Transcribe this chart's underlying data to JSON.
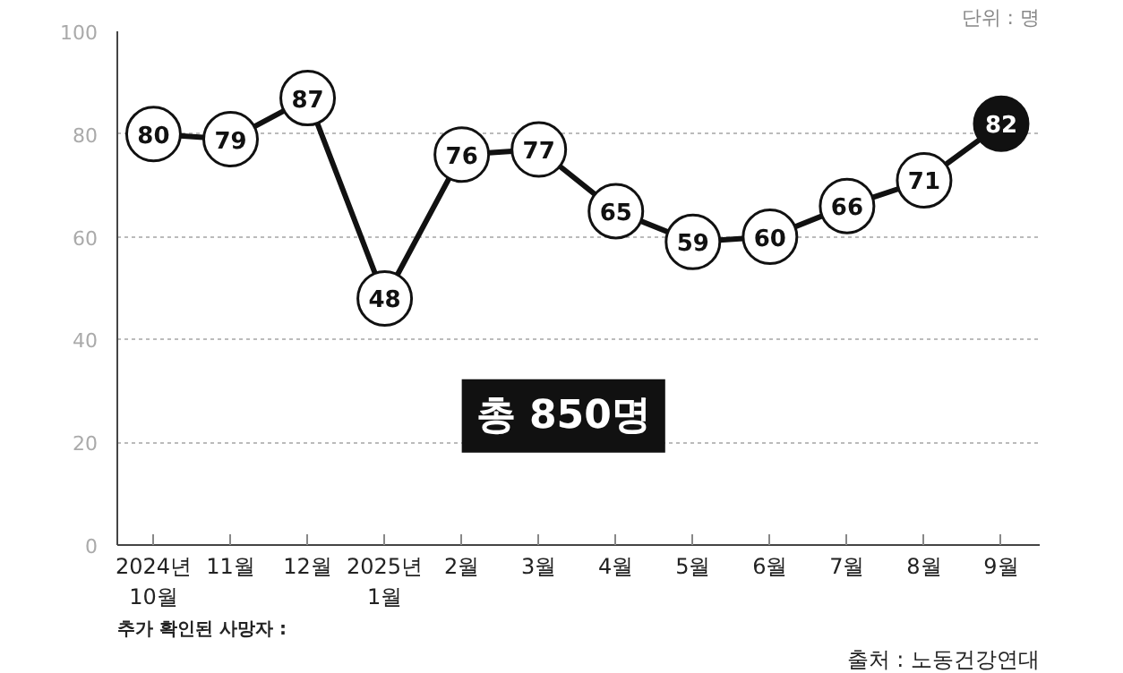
{
  "chart_data": {
    "type": "line",
    "categories": [
      "2024년\n10월",
      "11월",
      "12월",
      "2025년\n1월",
      "2월",
      "3월",
      "4월",
      "5월",
      "6월",
      "7월",
      "8월",
      "9월"
    ],
    "series": [
      {
        "color": "#111111",
        "values": [
          80,
          79,
          87,
          48,
          76,
          77,
          65,
          59,
          60,
          66,
          71,
          82
        ]
      }
    ],
    "colors": [
      "#ffffff",
      "#ffffff",
      "#ffffff",
      "#ffffff",
      "#ffffff",
      "#ffffff",
      "#ffffff",
      "#ffffff",
      "#ffffff",
      "#ffffff",
      "#ffffff",
      "#111111"
    ],
    "ylim": [
      0,
      100
    ],
    "yticks": [
      0,
      20,
      40,
      60,
      80,
      100
    ],
    "grid": "y",
    "marker": "circle",
    "line_style": "solid",
    "data_labels": true,
    "annotations": [
      "단위 : 명",
      "총 850명",
      "추가 확인된 사망자 :",
      "출처 : 노동건강연대"
    ]
  }
}
